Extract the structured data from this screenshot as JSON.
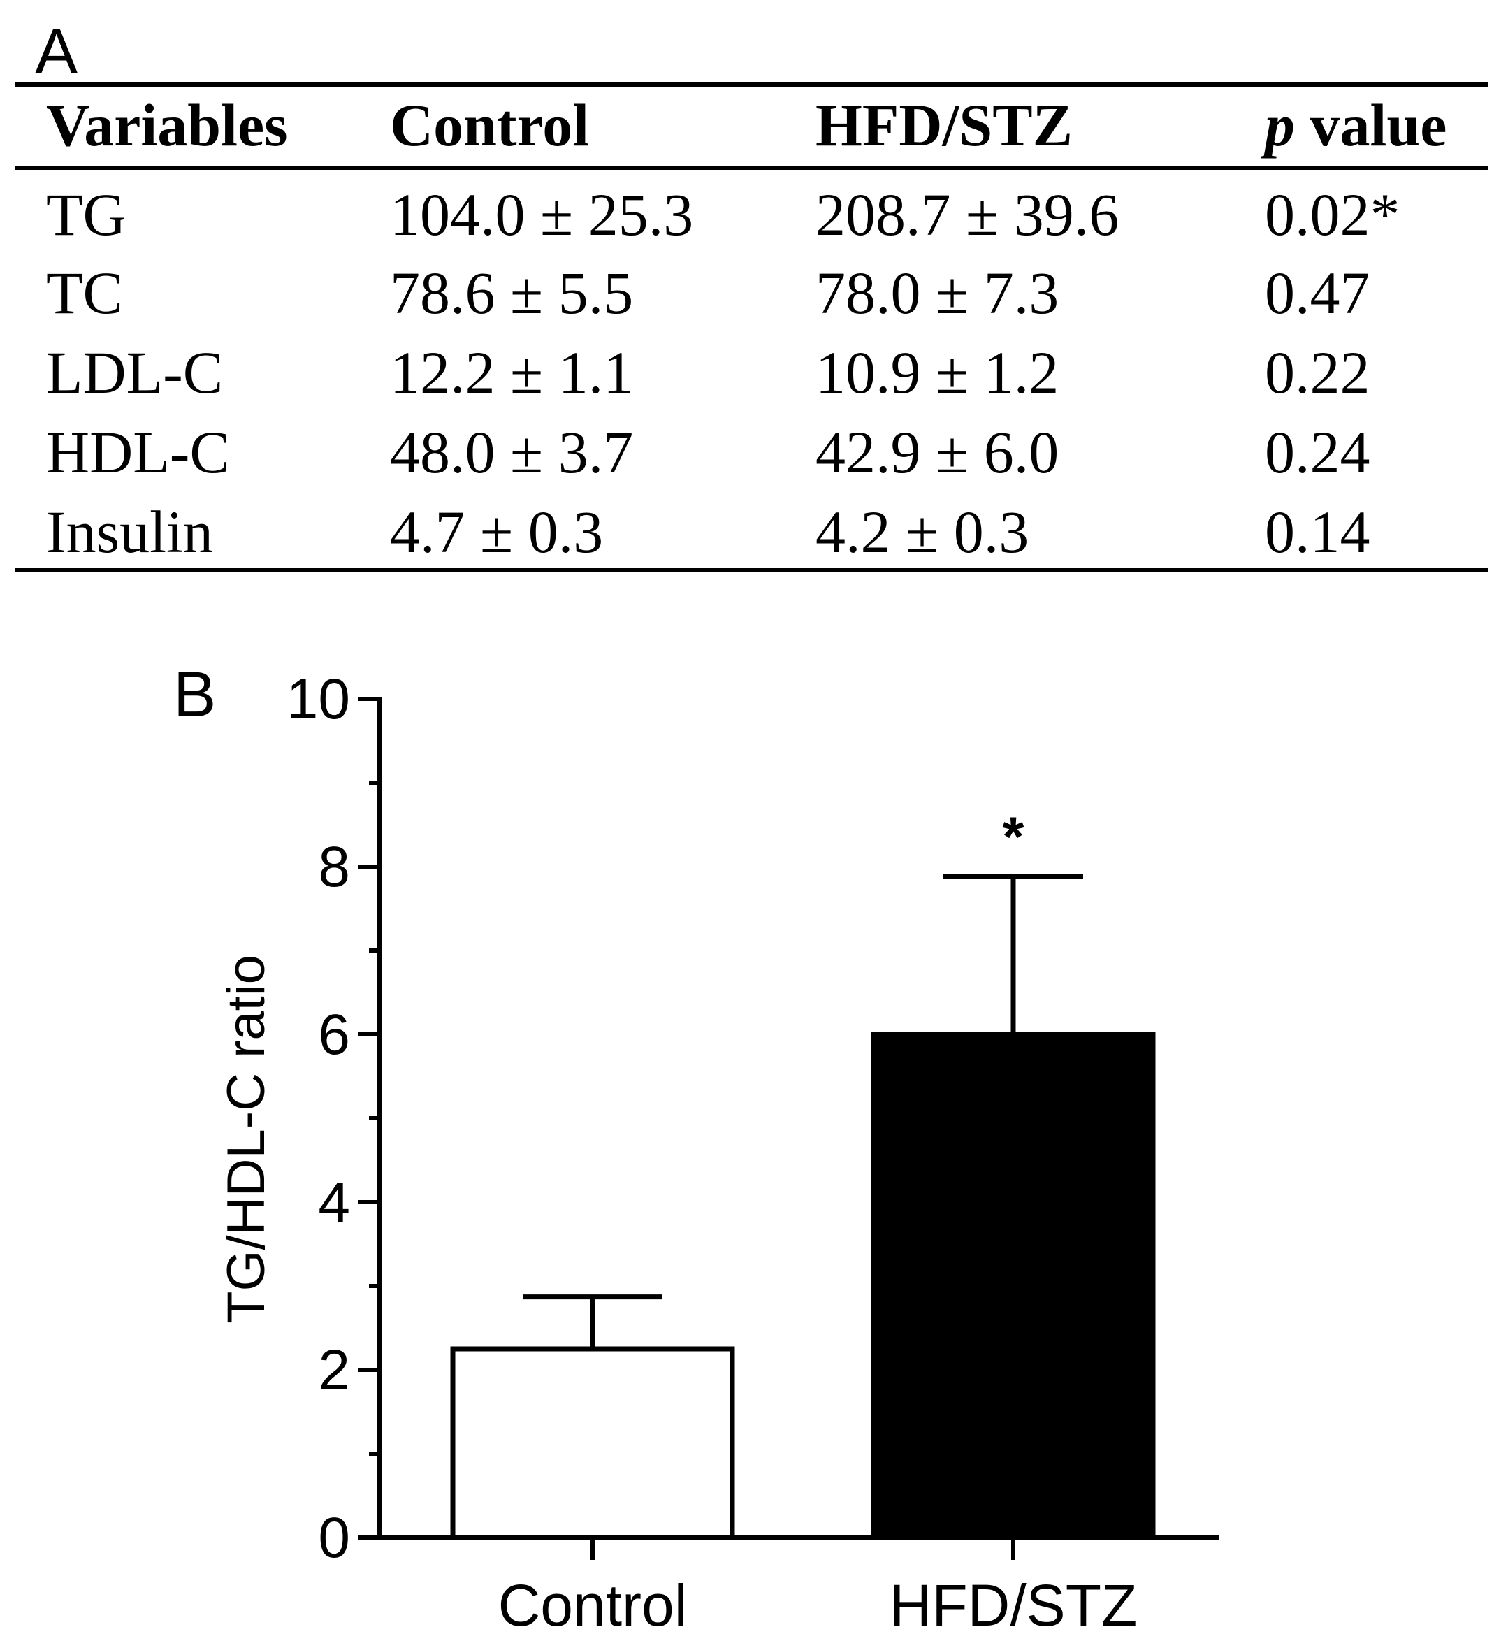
{
  "panel_a": {
    "label": "A",
    "headers": {
      "variables": "Variables",
      "control": "Control",
      "hfd": "HFD/STZ",
      "p_italic": "p",
      "p_rest": " value"
    },
    "rows": [
      {
        "variable": "TG",
        "control": "104.0 ± 25.3",
        "hfd": "208.7 ± 39.6",
        "p": "0.02*"
      },
      {
        "variable": "TC",
        "control": "78.6 ± 5.5",
        "hfd": "78.0 ± 7.3",
        "p": "0.47"
      },
      {
        "variable": "LDL-C",
        "control": "12.2 ± 1.1",
        "hfd": "10.9 ± 1.2",
        "p": "0.22"
      },
      {
        "variable": "HDL-C",
        "control": "48.0 ± 3.7",
        "hfd": "42.9 ± 6.0",
        "p": "0.24"
      },
      {
        "variable": "Insulin",
        "control": "4.7 ± 0.3",
        "hfd": "4.2 ± 0.3",
        "p": "0.14"
      }
    ]
  },
  "panel_b": {
    "label": "B"
  },
  "chart_data": {
    "type": "bar",
    "title": "",
    "xlabel": "",
    "ylabel": "TG/HDL-C ratio",
    "ylim": [
      0,
      10
    ],
    "yticks": [
      "0",
      "2",
      "4",
      "6",
      "8",
      "10"
    ],
    "categories": [
      "Control",
      "HFD/STZ"
    ],
    "values": [
      2.25,
      6.0
    ],
    "errors": [
      0.62,
      1.88
    ],
    "fills": [
      "#ffffff",
      "#000000"
    ],
    "annotations": [
      "",
      "*"
    ]
  }
}
